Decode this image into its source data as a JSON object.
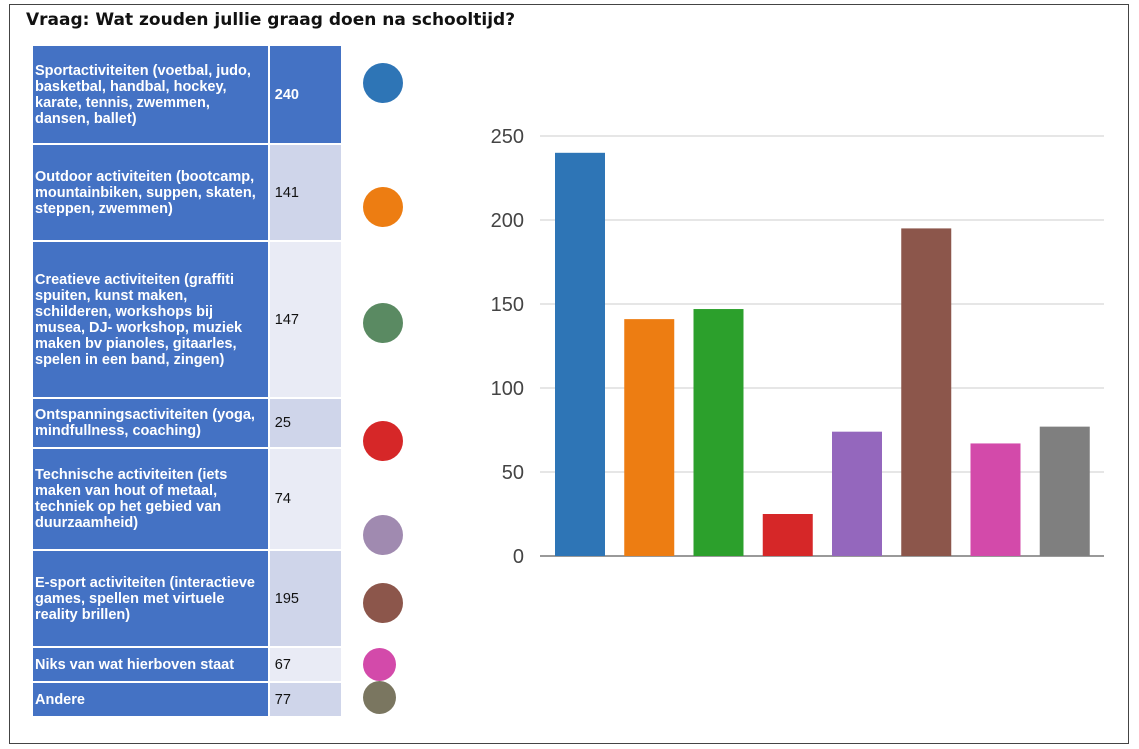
{
  "question": "Vraag: Wat zouden jullie graag doen na schooltijd?",
  "chart_data": {
    "type": "bar",
    "categories": [
      "Sportactiviteiten (voetbal, judo, basketbal, handbal, hockey, karate, tennis, zwemmen, dansen, ballet)",
      "Outdoor activiteiten (bootcamp, mountainbiken, suppen, skaten, steppen, zwemmen)",
      "Creatieve activiteiten (graffiti spuiten, kunst maken, schilderen, workshops bij musea, DJ- workshop, muziek maken bv pianoles, gitaarles, spelen in een band, zingen)",
      "Ontspanningsactiviteiten (yoga, mindfullness, coaching)",
      "Technische activiteiten (iets maken van hout of metaal, techniek op het gebied van duurzaamheid)",
      "E-sport activiteiten (interactieve games, spellen met virtuele reality brillen)",
      "Niks van wat hierboven staat",
      "Andere"
    ],
    "values": [
      240,
      141,
      147,
      25,
      74,
      195,
      67,
      77
    ],
    "bar_colors": [
      "#2e75b6",
      "#ed7d12",
      "#2ca02c",
      "#d62728",
      "#9467bd",
      "#8c564b",
      "#d34aaa",
      "#7f7f7f"
    ],
    "dot_colors": [
      "#2e75b6",
      "#ed7d12",
      "#5a8a62",
      "#d62728",
      "#a08ab0",
      "#8c564b",
      "#d34aaa",
      "#7a7660"
    ],
    "yticks": [
      0,
      50,
      100,
      150,
      200,
      250
    ],
    "ylim": [
      0,
      250
    ],
    "grid": true,
    "legend": "none"
  }
}
